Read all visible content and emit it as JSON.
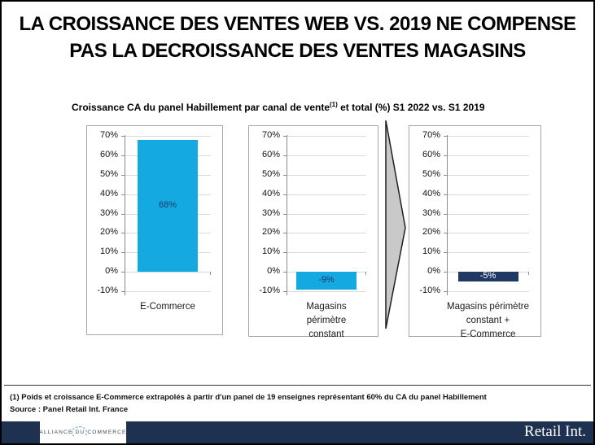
{
  "page": {
    "title_line1": "LA CROISSANCE DES VENTES WEB VS. 2019 NE COMPENSE",
    "title_line2": "PAS LA DECROISSANCE DES VENTES MAGASINS",
    "subtitle": {
      "text": "Croissance CA du panel Habillement par canal de vente",
      "footnote_ref": "(1)",
      "tail": " et total (%) S1 2022 vs. S1 2019"
    }
  },
  "chart_data": [
    {
      "type": "bar",
      "categories": [
        "E-Commerce"
      ],
      "category_lines": [
        "E-Commerce"
      ],
      "values": [
        68
      ],
      "data_labels": [
        "68%"
      ],
      "ylim": [
        -10,
        70
      ],
      "yticks": [
        70,
        60,
        50,
        40,
        30,
        20,
        10,
        0,
        -10
      ],
      "ytick_labels": [
        "70%",
        "60%",
        "50%",
        "40%",
        "30%",
        "20%",
        "10%",
        "0%",
        "-10%"
      ],
      "grid": true,
      "legend": "none",
      "bar_color": "#15A9E1",
      "label_color": "#17375E"
    },
    {
      "type": "bar",
      "categories": [
        "Magasins périmètre constant"
      ],
      "category_lines": [
        "Magasins périmètre",
        "constant"
      ],
      "values": [
        -9
      ],
      "data_labels": [
        "-9%"
      ],
      "ylim": [
        -10,
        70
      ],
      "yticks": [
        70,
        60,
        50,
        40,
        30,
        20,
        10,
        0,
        -10
      ],
      "ytick_labels": [
        "70%",
        "60%",
        "50%",
        "40%",
        "30%",
        "20%",
        "10%",
        "0%",
        "-10%"
      ],
      "grid": true,
      "legend": "none",
      "bar_color": "#15A9E1",
      "label_color": "#17375E"
    },
    {
      "type": "bar",
      "categories": [
        "Magasins périmètre constant + E-Commerce"
      ],
      "category_lines": [
        "Magasins périmètre",
        "constant +",
        "E-Commerce"
      ],
      "values": [
        -5
      ],
      "data_labels": [
        "-5%"
      ],
      "ylim": [
        -10,
        70
      ],
      "yticks": [
        70,
        60,
        50,
        40,
        30,
        20,
        10,
        0,
        -10
      ],
      "ytick_labels": [
        "70%",
        "60%",
        "50%",
        "40%",
        "30%",
        "20%",
        "10%",
        "0%",
        "-10%"
      ],
      "grid": true,
      "legend": "none",
      "bar_color": "#1F3864",
      "label_color": "#FFFFFF"
    }
  ],
  "footnote": "(1) Poids et croissance E-Commerce extrapolés à partir d'un panel de 19 enseignes représentant 60% du CA du panel Habillement",
  "source": "Source : Panel Retail Int. France",
  "footer": {
    "alliance_word_1": "ALLIANCE",
    "alliance_word_2": "DU",
    "alliance_word_3": "COMMERCE",
    "retail_logo": "Retail Int."
  },
  "colors": {
    "bar_cyan": "#15A9E1",
    "bar_navy": "#1F3864",
    "footer_bar": "#1E3150",
    "triangle_fill": "#C9C9C9",
    "triangle_stroke": "#1F1F1F",
    "gridline": "#D9D9D9"
  }
}
